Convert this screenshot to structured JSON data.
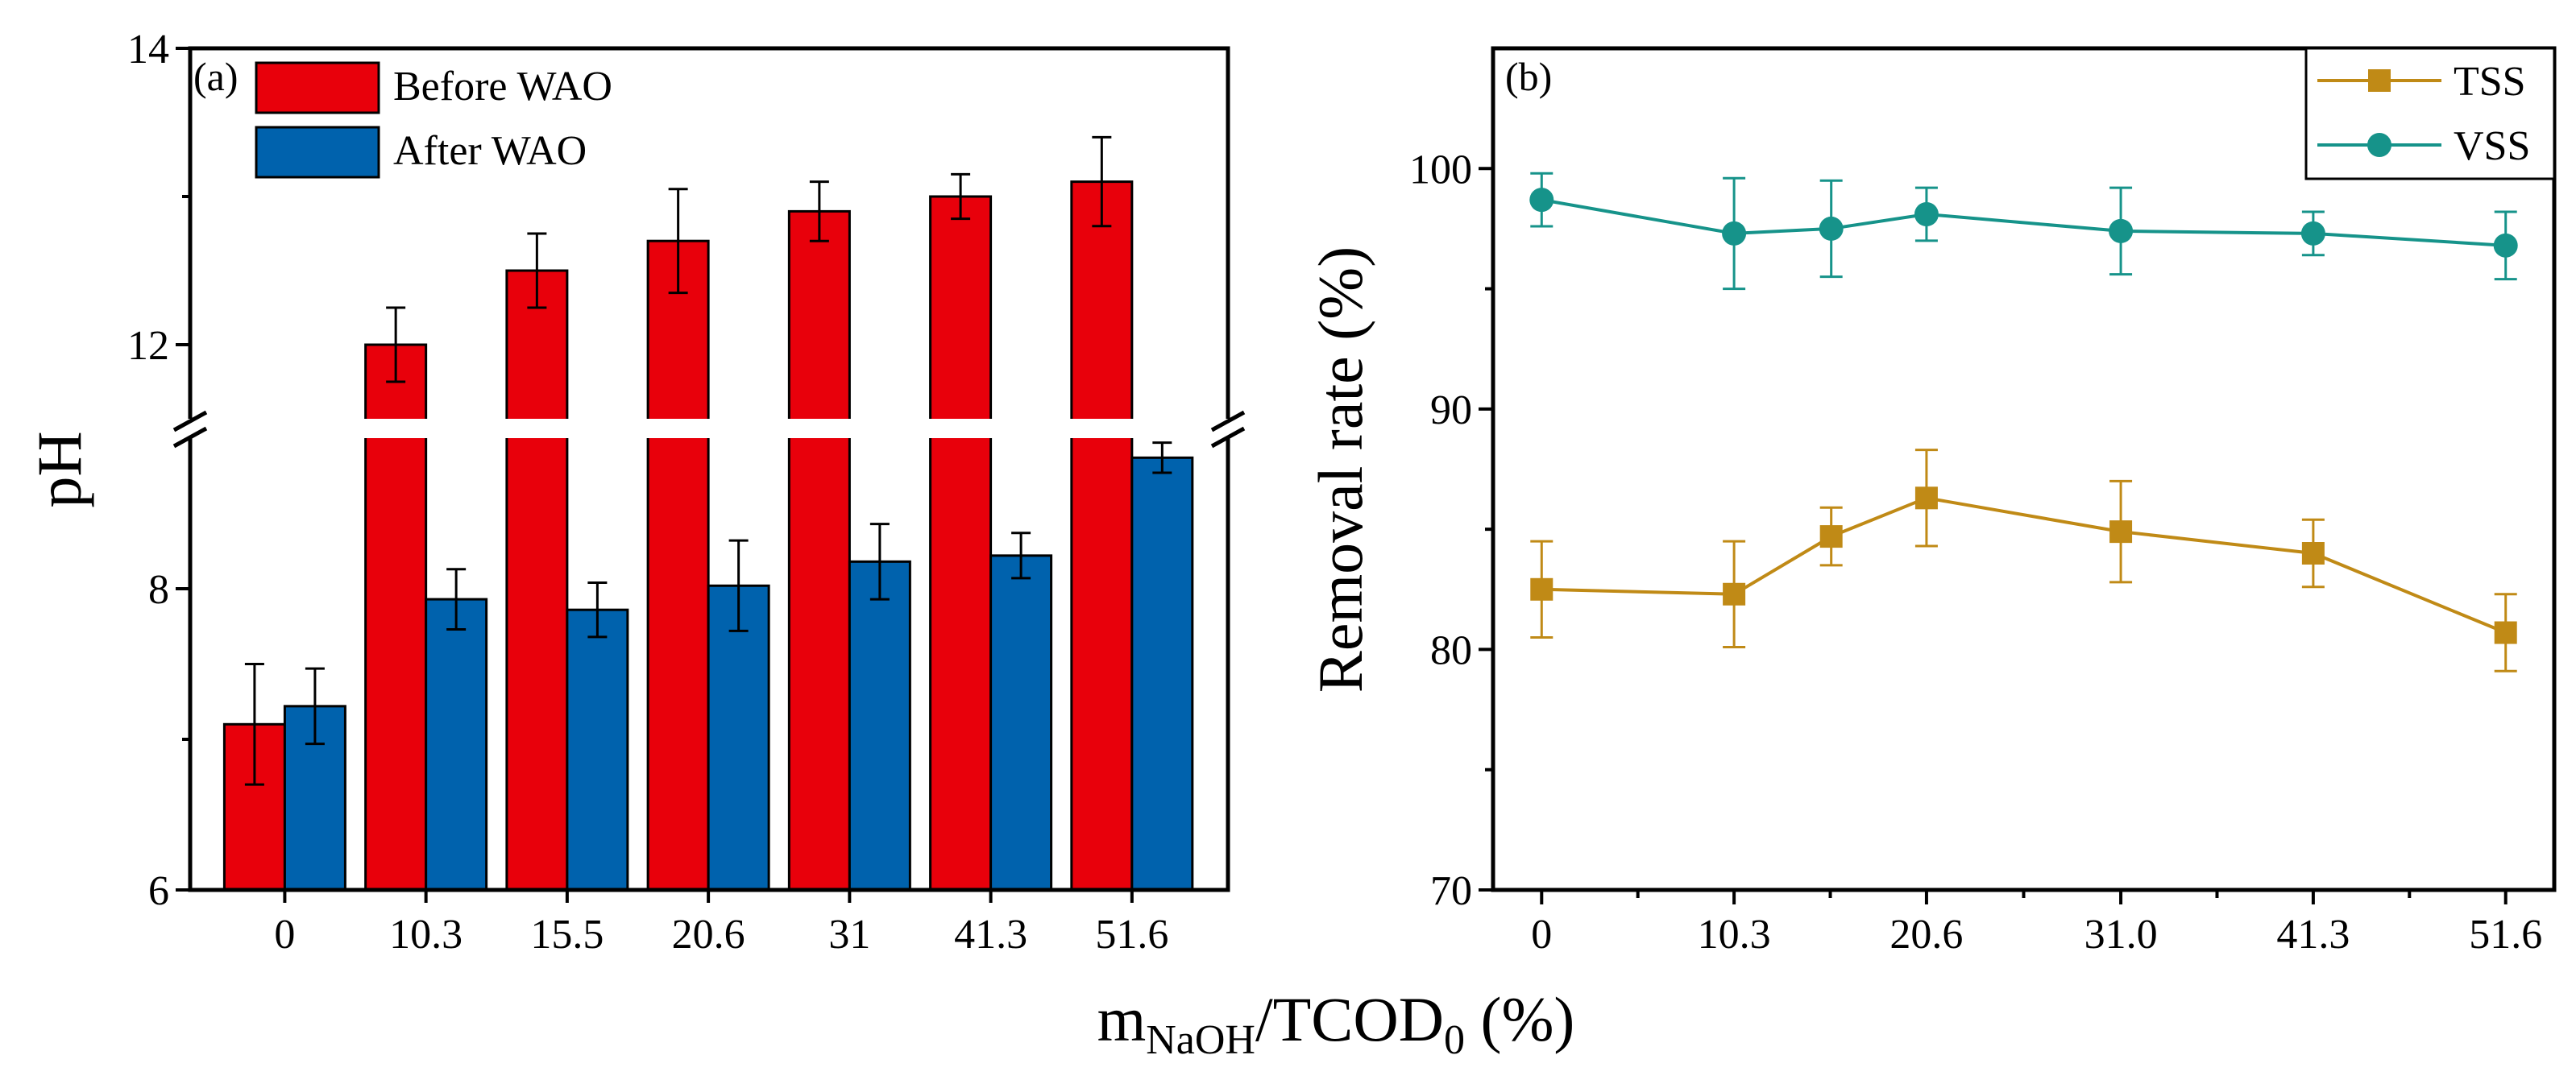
{
  "chart_data": [
    {
      "type": "bar",
      "panel_label": "(a)",
      "ylabel": "pH",
      "categories": [
        "0",
        "10.3",
        "15.5",
        "20.6",
        "31",
        "41.3",
        "51.6"
      ],
      "series": [
        {
          "name": "Before WAO",
          "color": "#e8000b",
          "values": [
            7.1,
            12.0,
            12.5,
            12.7,
            12.9,
            13.0,
            13.1
          ],
          "errors": [
            0.4,
            0.25,
            0.25,
            0.35,
            0.2,
            0.15,
            0.3
          ]
        },
        {
          "name": "After WAO",
          "color": "#0062ad",
          "values": [
            7.22,
            7.93,
            7.86,
            8.02,
            8.18,
            8.22,
            8.87
          ],
          "errors": [
            0.25,
            0.2,
            0.18,
            0.3,
            0.25,
            0.15,
            0.1
          ]
        }
      ],
      "y_segments": [
        [
          6,
          9
        ],
        [
          11.5,
          14
        ]
      ],
      "ylim": [
        6,
        14
      ],
      "yticks": [
        6,
        8,
        12,
        14
      ],
      "axis_break": "between 9 and 11.5",
      "legend": "top-left"
    },
    {
      "type": "line",
      "panel_label": "(b)",
      "ylabel": "Removal rate (%)",
      "x": [
        0,
        10.3,
        15.5,
        20.6,
        31.0,
        41.3,
        51.6
      ],
      "xticks": [
        0,
        10.3,
        20.6,
        31.0,
        41.3,
        51.6
      ],
      "xtick_labels": [
        "0",
        "10.3",
        "20.6",
        "31.0",
        "41.3",
        "51.6"
      ],
      "series": [
        {
          "name": "TSS",
          "color": "#c08a16",
          "marker": "square",
          "values": [
            82.5,
            82.3,
            84.7,
            86.3,
            84.9,
            84.0,
            80.7
          ],
          "errors": [
            2.0,
            2.2,
            1.2,
            2.0,
            2.1,
            1.4,
            1.6
          ]
        },
        {
          "name": "VSS",
          "color": "#16938a",
          "marker": "circle",
          "values": [
            98.7,
            97.3,
            97.5,
            98.1,
            97.4,
            97.3,
            96.8
          ],
          "errors": [
            1.1,
            2.3,
            2.0,
            1.1,
            1.8,
            0.9,
            1.4
          ]
        }
      ],
      "xlim": [
        -2.6,
        54.2
      ],
      "ylim": [
        70,
        105
      ],
      "yticks": [
        70,
        80,
        90,
        100
      ],
      "legend": "top-right"
    }
  ],
  "shared_xlabel": {
    "main": "m",
    "sub1": "NaOH",
    "mid": "/TCOD",
    "sub2": "0",
    "end": " (%)"
  }
}
